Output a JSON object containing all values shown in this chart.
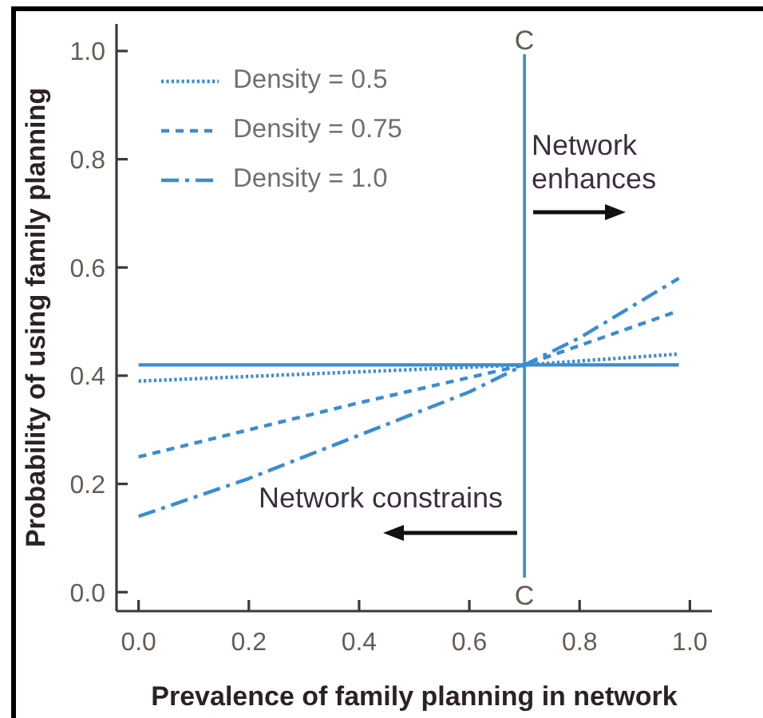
{
  "chart_data": {
    "type": "line",
    "xlabel": "Prevalence of family planning in network",
    "ylabel": "Probability of using family planning",
    "series": [
      {
        "name": "Density = 0.5",
        "color": "#3a8dd1",
        "line_style": "dotted",
        "x": [
          0,
          0.7,
          0.98
        ],
        "values": [
          0.39,
          0.42,
          0.44
        ]
      },
      {
        "name": "Density = 0.75",
        "color": "#3a8dd1",
        "line_style": "dashed",
        "x": [
          0,
          0.2,
          0.4,
          0.7,
          0.98
        ],
        "values": [
          0.25,
          0.3,
          0.35,
          0.42,
          0.52
        ]
      },
      {
        "name": "Density = 1.0",
        "color": "#3a8dd1",
        "line_style": "dashdot",
        "x": [
          0,
          0.2,
          0.4,
          0.6,
          0.7,
          0.8,
          0.98
        ],
        "values": [
          0.14,
          0.21,
          0.29,
          0.37,
          0.42,
          0.47,
          0.58
        ]
      },
      {
        "color": "#3a8dd1",
        "line_style": "solid",
        "x": [
          0,
          0.98
        ],
        "values": [
          0.42,
          0.42
        ]
      }
    ],
    "xlim": [
      -0.04,
      1.04
    ],
    "xticks": [
      {
        "value": 0,
        "label": "0.0"
      },
      0.2,
      0.4,
      0.6,
      0.8,
      {
        "value": 1,
        "label": "1.0"
      }
    ],
    "ylim": [
      -0.035,
      1.05
    ],
    "yticks": [
      {
        "value": 0,
        "label": "0.0"
      },
      0.2,
      0.4,
      0.6,
      0.8,
      {
        "value": 1,
        "label": "1.0"
      }
    ],
    "ref_lines": [
      {
        "axis": "x",
        "value": 0.7,
        "label": "C",
        "color": "#3a8dd1"
      }
    ],
    "annotations": [
      "Network enhances",
      "Network constrains"
    ],
    "legend": "top left",
    "marker": "none"
  }
}
